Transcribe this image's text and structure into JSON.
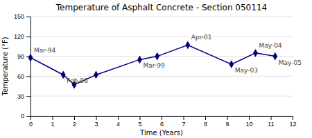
{
  "chart_data": {
    "type": "line",
    "title": "Temperature of Asphalt Concrete - Section 050114",
    "x_label": "Time (Years)",
    "y_label": "Temperature (°F)",
    "x": [
      0,
      1.5,
      2.0,
      3.0,
      5.0,
      5.8,
      7.2,
      9.2,
      10.3,
      11.2
    ],
    "values": [
      88,
      62,
      47,
      62,
      85,
      90,
      107,
      78,
      95,
      90
    ],
    "annotations": [
      "Mar-94",
      "Feb-96",
      null,
      null,
      "Mar-99",
      null,
      "Apr-01",
      "May-03",
      "May-04",
      "May-05"
    ],
    "xlim": [
      0,
      12
    ],
    "ylim": [
      0,
      150
    ],
    "xticks": [
      0,
      1,
      2,
      3,
      4,
      5,
      6,
      7,
      8,
      9,
      10,
      11,
      12
    ],
    "yticks": [
      0,
      30,
      60,
      90,
      120,
      150
    ],
    "color": "#00007B",
    "marker": "diamond",
    "grid": true
  }
}
